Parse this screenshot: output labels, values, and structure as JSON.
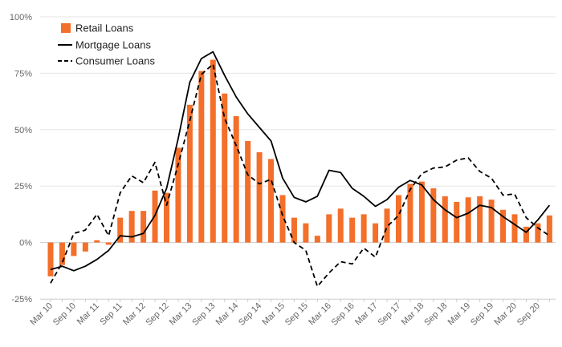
{
  "chart_data": {
    "type": "bar",
    "title": "",
    "xlabel": "",
    "ylabel": "",
    "ylim": [
      -0.25,
      1.0
    ],
    "yticks": [
      {
        "value": 1.0,
        "label": "100%"
      },
      {
        "value": 0.75,
        "label": "75%"
      },
      {
        "value": 0.5,
        "label": "50%"
      },
      {
        "value": 0.25,
        "label": "25%"
      },
      {
        "value": 0.0,
        "label": "0%"
      },
      {
        "value": -0.25,
        "label": "-25%"
      }
    ],
    "grid": true,
    "legend_position": "top-left",
    "categories": [
      "Mar 10",
      "Jun 10",
      "Sep 10",
      "Dec 10",
      "Mar 11",
      "Jun 11",
      "Sep 11",
      "Dec 11",
      "Mar 12",
      "Jun 12",
      "Sep 12",
      "Dec 12",
      "Mar 13",
      "Jun 13",
      "Sep 13",
      "Dec 13",
      "Mar 14",
      "Jun 14",
      "Sep 14",
      "Dec 14",
      "Mar 15",
      "Jun 15",
      "Sep 15",
      "Dec 15",
      "Mar 16",
      "Jun 16",
      "Sep 16",
      "Dec 16",
      "Mar 17",
      "Jun 17",
      "Sep 17",
      "Dec 17",
      "Mar 18",
      "Jun 18",
      "Sep 18",
      "Dec 18",
      "Mar 19",
      "Jun 19",
      "Sep 19",
      "Dec 19",
      "Mar 20",
      "Jun 20",
      "Sep 20",
      "Dec 20"
    ],
    "x_tick_labels": [
      "Mar 10",
      "Sep 10",
      "Mar 11",
      "Sep 11",
      "Mar 12",
      "Sep 12",
      "Mar 13",
      "Sep 13",
      "Mar 14",
      "Sep 14",
      "Mar 15",
      "Sep 15",
      "Mar 16",
      "Sep 16",
      "Mar 17",
      "Sep 17",
      "Mar 18",
      "Sep 18",
      "Mar 19",
      "Sep 19",
      "Mar 20",
      "Sep 20"
    ],
    "series": [
      {
        "name": "Retail Loans",
        "type": "bar",
        "color": "#f36f2a",
        "values": [
          -0.15,
          -0.1,
          -0.06,
          -0.04,
          0.01,
          -0.01,
          0.11,
          0.14,
          0.14,
          0.23,
          0.22,
          0.42,
          0.61,
          0.76,
          0.81,
          0.66,
          0.56,
          0.45,
          0.4,
          0.37,
          0.21,
          0.11,
          0.085,
          0.03,
          0.125,
          0.15,
          0.11,
          0.125,
          0.085,
          0.15,
          0.21,
          0.26,
          0.27,
          0.24,
          0.205,
          0.18,
          0.2,
          0.205,
          0.19,
          0.145,
          0.125,
          0.07,
          0.085,
          0.12
        ]
      },
      {
        "name": "Mortgage Loans",
        "type": "line",
        "style": "solid",
        "color": "#000000",
        "values": [
          -0.12,
          -0.105,
          -0.125,
          -0.105,
          -0.075,
          -0.035,
          0.03,
          0.025,
          0.04,
          0.12,
          0.24,
          0.46,
          0.71,
          0.815,
          0.845,
          0.74,
          0.645,
          0.57,
          0.51,
          0.45,
          0.285,
          0.2,
          0.18,
          0.205,
          0.32,
          0.31,
          0.24,
          0.205,
          0.16,
          0.19,
          0.245,
          0.275,
          0.255,
          0.19,
          0.145,
          0.11,
          0.13,
          0.165,
          0.155,
          0.115,
          0.08,
          0.045,
          0.1,
          0.165
        ]
      },
      {
        "name": "Consumer Loans",
        "type": "line",
        "style": "dashed",
        "color": "#000000",
        "values": [
          -0.18,
          -0.09,
          0.04,
          0.055,
          0.125,
          0.03,
          0.22,
          0.295,
          0.265,
          0.355,
          0.165,
          0.345,
          0.54,
          0.745,
          0.79,
          0.55,
          0.43,
          0.3,
          0.26,
          0.28,
          0.12,
          0.0,
          -0.035,
          -0.195,
          -0.135,
          -0.085,
          -0.095,
          -0.025,
          -0.065,
          0.07,
          0.12,
          0.235,
          0.305,
          0.33,
          0.335,
          0.365,
          0.375,
          0.315,
          0.285,
          0.21,
          0.215,
          0.11,
          0.065,
          0.03
        ]
      }
    ]
  }
}
